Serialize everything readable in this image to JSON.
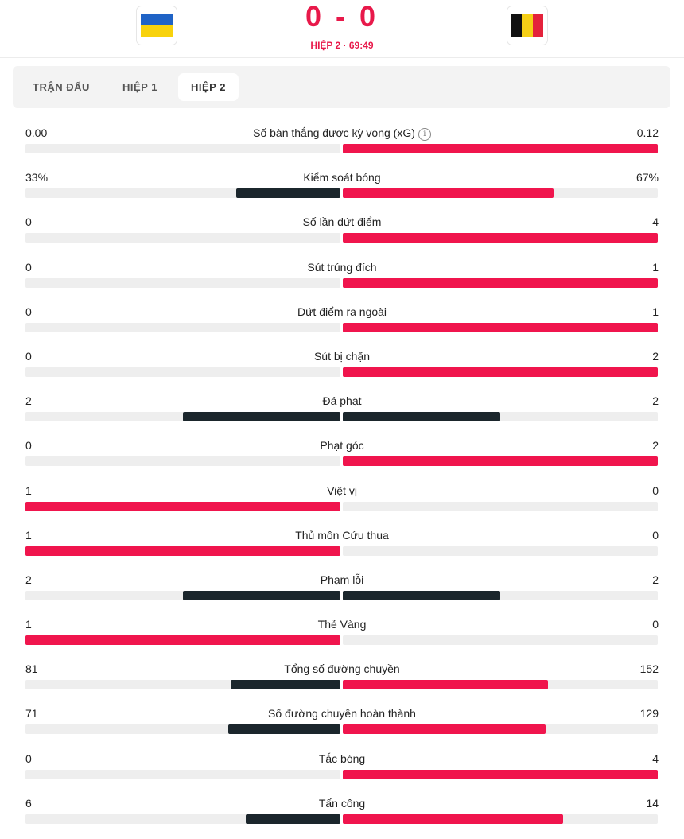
{
  "match": {
    "score": "0 - 0",
    "period": "HIỆP 2 · 69:49",
    "home_flag": "ukraine-flag",
    "away_flag": "belgium-flag"
  },
  "tabs": [
    {
      "label": "TRẬN ĐẤU",
      "active": false
    },
    {
      "label": "HIỆP 1",
      "active": false
    },
    {
      "label": "HIỆP 2",
      "active": true
    }
  ],
  "colors": {
    "highlight": "#f0154d",
    "neutral": "#1b262c",
    "track": "#eeeeee"
  },
  "stats": [
    {
      "label": "Số bàn thắng được kỳ vọng (xG)",
      "home": "0.00",
      "away": "0.12",
      "home_share": 0,
      "away_share": 1,
      "info": true
    },
    {
      "label": "Kiểm soát bóng",
      "home": "33%",
      "away": "67%",
      "home_share": 0.33,
      "away_share": 0.67,
      "home_color": "neutral",
      "away_color": "highlight"
    },
    {
      "label": "Số lần dứt điểm",
      "home": "0",
      "away": "4",
      "home_share": 0,
      "away_share": 1
    },
    {
      "label": "Sút trúng đích",
      "home": "0",
      "away": "1",
      "home_share": 0,
      "away_share": 1
    },
    {
      "label": "Dứt điểm ra ngoài",
      "home": "0",
      "away": "1",
      "home_share": 0,
      "away_share": 1
    },
    {
      "label": "Sút bị chặn",
      "home": "0",
      "away": "2",
      "home_share": 0,
      "away_share": 1
    },
    {
      "label": "Đá phạt",
      "home": "2",
      "away": "2",
      "home_share": 0.5,
      "away_share": 0.5,
      "home_color": "neutral",
      "away_color": "neutral"
    },
    {
      "label": "Phạt góc",
      "home": "0",
      "away": "2",
      "home_share": 0,
      "away_share": 1
    },
    {
      "label": "Việt vị",
      "home": "1",
      "away": "0",
      "home_share": 1,
      "away_share": 0
    },
    {
      "label": "Thủ môn Cứu thua",
      "home": "1",
      "away": "0",
      "home_share": 1,
      "away_share": 0
    },
    {
      "label": "Phạm lỗi",
      "home": "2",
      "away": "2",
      "home_share": 0.5,
      "away_share": 0.5,
      "home_color": "neutral",
      "away_color": "neutral"
    },
    {
      "label": "Thẻ Vàng",
      "home": "1",
      "away": "0",
      "home_share": 1,
      "away_share": 0
    },
    {
      "label": "Tổng số đường chuyền",
      "home": "81",
      "away": "152",
      "home_share": 0.348,
      "away_share": 0.652,
      "home_color": "neutral",
      "away_color": "highlight"
    },
    {
      "label": "Số đường chuyền hoàn thành",
      "home": "71",
      "away": "129",
      "home_share": 0.355,
      "away_share": 0.645,
      "home_color": "neutral",
      "away_color": "highlight"
    },
    {
      "label": "Tắc bóng",
      "home": "0",
      "away": "4",
      "home_share": 0,
      "away_share": 1
    },
    {
      "label": "Tấn công",
      "home": "6",
      "away": "14",
      "home_share": 0.3,
      "away_share": 0.7,
      "home_color": "neutral",
      "away_color": "highlight"
    }
  ]
}
